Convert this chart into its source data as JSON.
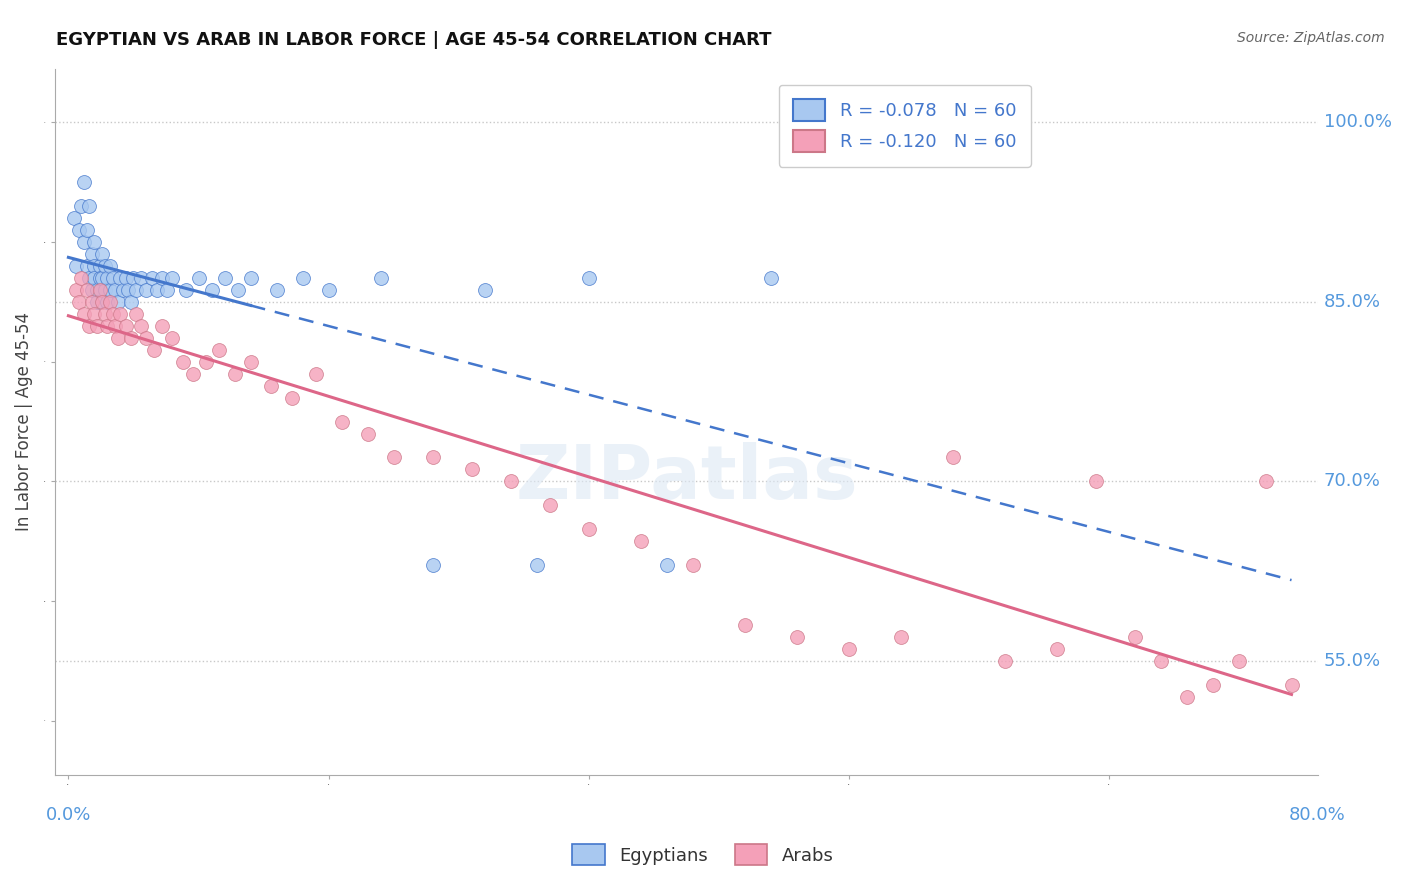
{
  "title": "EGYPTIAN VS ARAB IN LABOR FORCE | AGE 45-54 CORRELATION CHART",
  "source": "Source: ZipAtlas.com",
  "ylabel": "In Labor Force | Age 45-54",
  "ytick_labels": [
    "55.0%",
    "70.0%",
    "85.0%",
    "100.0%"
  ],
  "ytick_values": [
    0.55,
    0.7,
    0.85,
    1.0
  ],
  "legend_label1": "Egyptians",
  "legend_label2": "Arabs",
  "r_egyptian": -0.078,
  "r_arab": -0.12,
  "n_egyptian": 60,
  "n_arab": 60,
  "color_egyptian": "#a8c8f0",
  "color_arab": "#f4a0b8",
  "color_trendline_egyptian": "#4477cc",
  "color_trendline_arab": "#dd6688",
  "eg_x": [
    0.002,
    0.003,
    0.004,
    0.005,
    0.006,
    0.006,
    0.007,
    0.007,
    0.008,
    0.008,
    0.009,
    0.009,
    0.01,
    0.01,
    0.01,
    0.011,
    0.011,
    0.012,
    0.012,
    0.013,
    0.013,
    0.014,
    0.014,
    0.015,
    0.015,
    0.016,
    0.016,
    0.017,
    0.018,
    0.019,
    0.02,
    0.021,
    0.022,
    0.023,
    0.024,
    0.025,
    0.026,
    0.028,
    0.03,
    0.032,
    0.034,
    0.036,
    0.038,
    0.04,
    0.045,
    0.05,
    0.055,
    0.06,
    0.065,
    0.07,
    0.08,
    0.09,
    0.1,
    0.12,
    0.14,
    0.16,
    0.18,
    0.2,
    0.23,
    0.27
  ],
  "eg_y": [
    0.92,
    0.88,
    0.91,
    0.93,
    0.95,
    0.9,
    0.91,
    0.88,
    0.93,
    0.87,
    0.89,
    0.86,
    0.88,
    0.87,
    0.9,
    0.86,
    0.85,
    0.88,
    0.87,
    0.89,
    0.87,
    0.88,
    0.86,
    0.87,
    0.85,
    0.86,
    0.88,
    0.87,
    0.86,
    0.85,
    0.87,
    0.86,
    0.87,
    0.86,
    0.85,
    0.87,
    0.86,
    0.87,
    0.86,
    0.87,
    0.86,
    0.87,
    0.86,
    0.87,
    0.86,
    0.87,
    0.86,
    0.87,
    0.86,
    0.87,
    0.86,
    0.87,
    0.86,
    0.87,
    0.63,
    0.86,
    0.63,
    0.87,
    0.63,
    0.87
  ],
  "ar_x": [
    0.003,
    0.004,
    0.005,
    0.006,
    0.007,
    0.008,
    0.009,
    0.01,
    0.011,
    0.012,
    0.013,
    0.014,
    0.015,
    0.016,
    0.017,
    0.018,
    0.019,
    0.02,
    0.022,
    0.024,
    0.026,
    0.028,
    0.03,
    0.033,
    0.036,
    0.04,
    0.044,
    0.048,
    0.053,
    0.058,
    0.064,
    0.07,
    0.078,
    0.086,
    0.095,
    0.105,
    0.115,
    0.125,
    0.14,
    0.155,
    0.17,
    0.185,
    0.2,
    0.22,
    0.24,
    0.26,
    0.28,
    0.3,
    0.32,
    0.34,
    0.36,
    0.38,
    0.395,
    0.41,
    0.42,
    0.43,
    0.44,
    0.45,
    0.46,
    0.47
  ],
  "ar_y": [
    0.86,
    0.85,
    0.87,
    0.84,
    0.86,
    0.83,
    0.85,
    0.84,
    0.83,
    0.86,
    0.85,
    0.84,
    0.83,
    0.85,
    0.84,
    0.83,
    0.82,
    0.84,
    0.83,
    0.82,
    0.84,
    0.83,
    0.82,
    0.81,
    0.83,
    0.82,
    0.8,
    0.79,
    0.8,
    0.81,
    0.79,
    0.8,
    0.78,
    0.77,
    0.79,
    0.75,
    0.74,
    0.72,
    0.72,
    0.71,
    0.7,
    0.68,
    0.66,
    0.65,
    0.63,
    0.58,
    0.57,
    0.56,
    0.57,
    0.72,
    0.55,
    0.56,
    0.7,
    0.57,
    0.55,
    0.52,
    0.53,
    0.55,
    0.7,
    0.53
  ]
}
